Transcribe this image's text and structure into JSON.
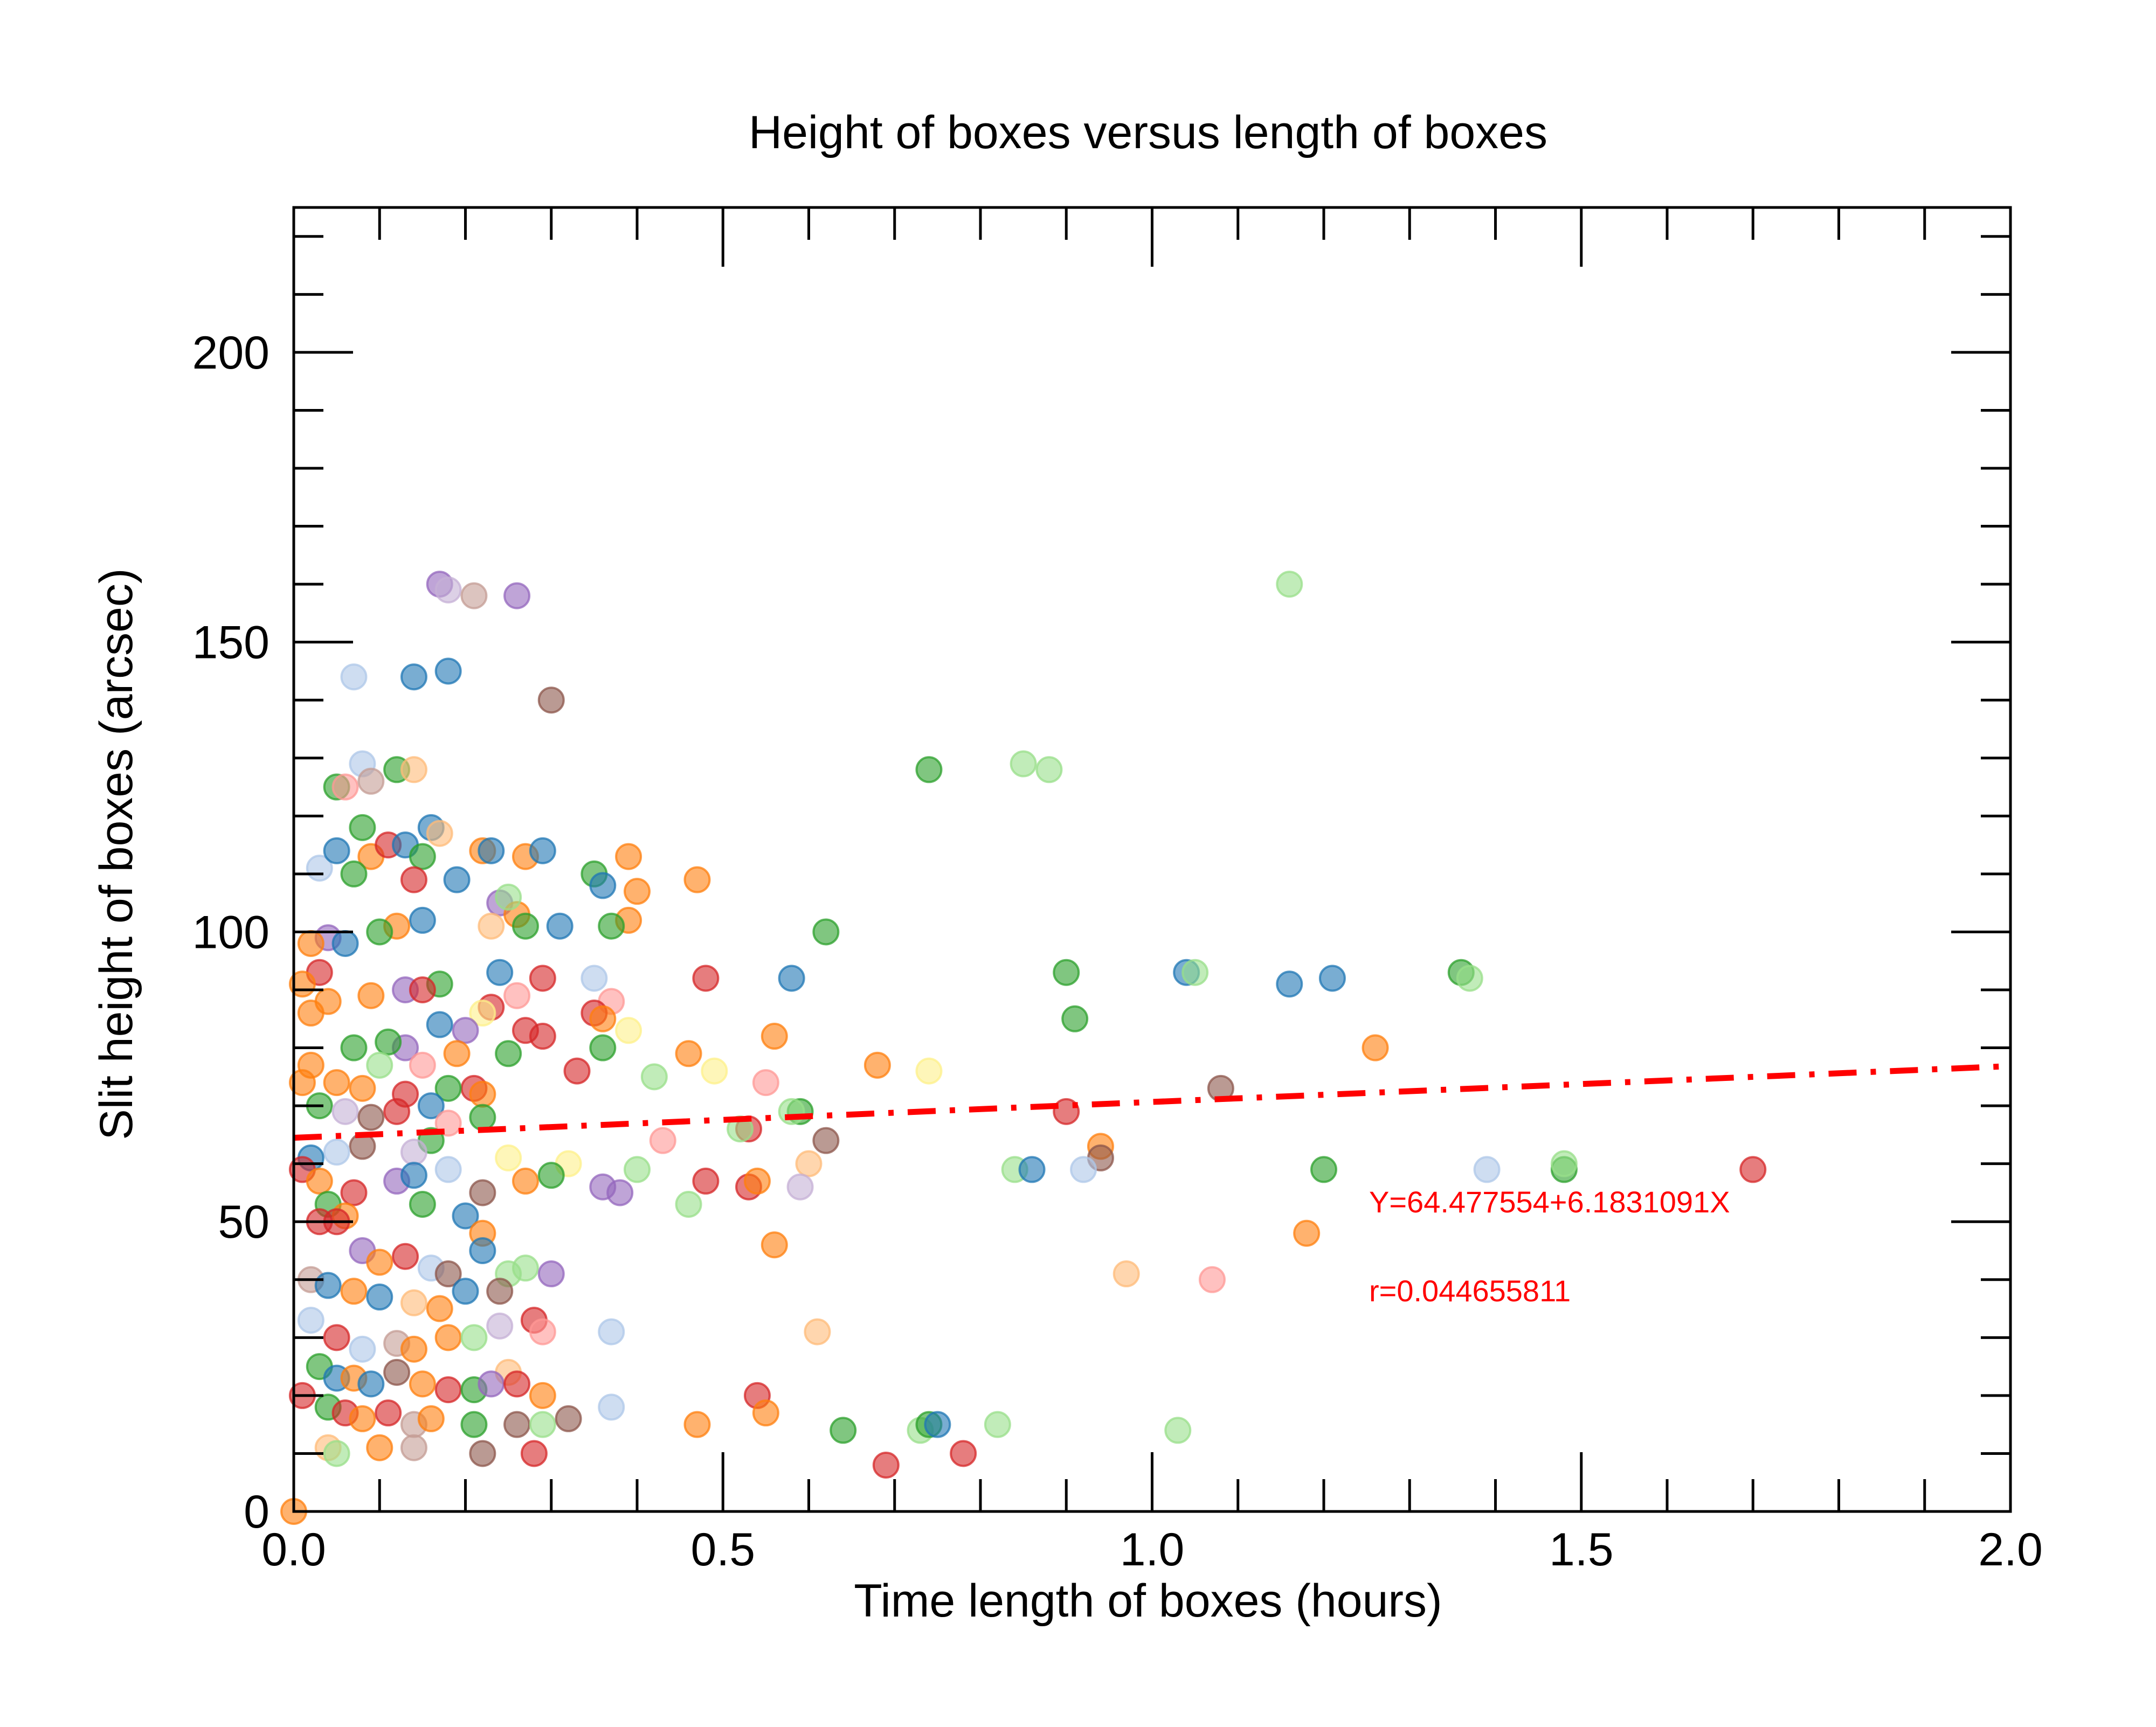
{
  "chart_data": {
    "type": "scatter",
    "title": "Height of boxes versus length of boxes",
    "xlabel": "Time length of boxes (hours)",
    "ylabel": "Slit height of boxes (arcsec)",
    "xlim": [
      0.0,
      2.0
    ],
    "ylim": [
      0,
      225
    ],
    "x_ticks": [
      0.0,
      0.5,
      1.0,
      1.5,
      2.0
    ],
    "x_tick_labels": [
      "0.0",
      "0.5",
      "1.0",
      "1.5",
      "2.0"
    ],
    "y_ticks": [
      0,
      50,
      100,
      150,
      200
    ],
    "y_tick_labels": [
      "0",
      "50",
      "100",
      "150",
      "200"
    ],
    "grid": false,
    "legend": "none",
    "colors": [
      "#1f77b4",
      "#ff7f0e",
      "#2ca02c",
      "#d62728",
      "#9467bd",
      "#8c564b",
      "#aec7e8",
      "#ffbb78",
      "#98df8a",
      "#ff9896",
      "#c5b0d5",
      "#c49c94",
      "#fdf08a"
    ],
    "fit_line": {
      "intercept": 64.477554,
      "slope": 6.1831091,
      "color": "#ff0000",
      "style": "dash-dot",
      "x_range": [
        0.0,
        2.0
      ]
    },
    "annotations": [
      {
        "text": "Y=64.477554+6.1831091X",
        "color": "#ff0000"
      },
      {
        "text": "r=0.044655811",
        "color": "#ff0000"
      }
    ],
    "points": [
      [
        1.16,
        160,
        8
      ],
      [
        0.17,
        160,
        4
      ],
      [
        0.18,
        159,
        10
      ],
      [
        0.21,
        158,
        11
      ],
      [
        0.26,
        158,
        4
      ],
      [
        0.07,
        144,
        6
      ],
      [
        0.14,
        144,
        0
      ],
      [
        0.18,
        145,
        0
      ],
      [
        0.3,
        140,
        5
      ],
      [
        0.74,
        128,
        2
      ],
      [
        0.85,
        129,
        8
      ],
      [
        0.88,
        128,
        8
      ],
      [
        0.08,
        129,
        6
      ],
      [
        0.12,
        128,
        2
      ],
      [
        0.14,
        128,
        7
      ],
      [
        0.05,
        125,
        2
      ],
      [
        0.06,
        125,
        9
      ],
      [
        0.09,
        126,
        11
      ],
      [
        0.08,
        118,
        2
      ],
      [
        0.16,
        118,
        0
      ],
      [
        0.17,
        117,
        7
      ],
      [
        0.03,
        111,
        6
      ],
      [
        0.05,
        114,
        0
      ],
      [
        0.09,
        113,
        1
      ],
      [
        0.11,
        115,
        3
      ],
      [
        0.13,
        115,
        0
      ],
      [
        0.15,
        113,
        2
      ],
      [
        0.22,
        114,
        1
      ],
      [
        0.23,
        114,
        0
      ],
      [
        0.27,
        113,
        1
      ],
      [
        0.29,
        114,
        0
      ],
      [
        0.35,
        110,
        2
      ],
      [
        0.39,
        113,
        1
      ],
      [
        0.47,
        109,
        1
      ],
      [
        0.4,
        107,
        1
      ],
      [
        0.36,
        108,
        0
      ],
      [
        0.19,
        109,
        0
      ],
      [
        0.14,
        109,
        3
      ],
      [
        0.07,
        110,
        2
      ],
      [
        0.24,
        105,
        4
      ],
      [
        0.26,
        103,
        1
      ],
      [
        0.27,
        101,
        2
      ],
      [
        0.31,
        101,
        0
      ],
      [
        0.25,
        106,
        8
      ],
      [
        0.23,
        101,
        7
      ],
      [
        0.39,
        102,
        1
      ],
      [
        0.37,
        101,
        2
      ],
      [
        0.62,
        100,
        2
      ],
      [
        0.15,
        102,
        0
      ],
      [
        0.12,
        101,
        1
      ],
      [
        0.1,
        100,
        2
      ],
      [
        0.04,
        99,
        4
      ],
      [
        0.06,
        98,
        0
      ],
      [
        0.02,
        98,
        1
      ],
      [
        0.03,
        93,
        3
      ],
      [
        0.01,
        91,
        1
      ],
      [
        0.29,
        92,
        3
      ],
      [
        0.35,
        92,
        6
      ],
      [
        0.24,
        93,
        0
      ],
      [
        0.48,
        92,
        3
      ],
      [
        0.58,
        92,
        0
      ],
      [
        0.9,
        93,
        2
      ],
      [
        1.04,
        93,
        0
      ],
      [
        1.05,
        93,
        8
      ],
      [
        1.16,
        91,
        0
      ],
      [
        1.21,
        92,
        0
      ],
      [
        1.36,
        93,
        2
      ],
      [
        1.37,
        92,
        8
      ],
      [
        0.17,
        91,
        2
      ],
      [
        0.13,
        90,
        4
      ],
      [
        0.15,
        90,
        3
      ],
      [
        0.09,
        89,
        1
      ],
      [
        0.04,
        88,
        1
      ],
      [
        0.02,
        86,
        1
      ],
      [
        0.26,
        89,
        9
      ],
      [
        0.37,
        88,
        9
      ],
      [
        0.39,
        83,
        12
      ],
      [
        0.35,
        86,
        3
      ],
      [
        0.36,
        85,
        1
      ],
      [
        0.23,
        87,
        3
      ],
      [
        0.22,
        86,
        12
      ],
      [
        0.2,
        83,
        4
      ],
      [
        0.17,
        84,
        0
      ],
      [
        0.13,
        80,
        4
      ],
      [
        0.11,
        81,
        2
      ],
      [
        0.07,
        80,
        2
      ],
      [
        0.29,
        82,
        3
      ],
      [
        0.27,
        83,
        3
      ],
      [
        0.25,
        79,
        2
      ],
      [
        0.36,
        80,
        2
      ],
      [
        0.56,
        82,
        1
      ],
      [
        0.91,
        85,
        2
      ],
      [
        0.46,
        79,
        1
      ],
      [
        0.42,
        75,
        8
      ],
      [
        0.33,
        76,
        3
      ],
      [
        0.19,
        79,
        1
      ],
      [
        0.15,
        77,
        9
      ],
      [
        0.1,
        77,
        8
      ],
      [
        0.68,
        77,
        1
      ],
      [
        0.74,
        76,
        12
      ],
      [
        1.26,
        80,
        1
      ],
      [
        1.08,
        73,
        5
      ],
      [
        0.55,
        74,
        9
      ],
      [
        0.49,
        76,
        12
      ],
      [
        0.21,
        73,
        3
      ],
      [
        0.22,
        72,
        1
      ],
      [
        0.18,
        73,
        2
      ],
      [
        0.13,
        72,
        3
      ],
      [
        0.08,
        73,
        1
      ],
      [
        0.05,
        74,
        1
      ],
      [
        0.02,
        77,
        1
      ],
      [
        0.01,
        74,
        1
      ],
      [
        0.03,
        70,
        2
      ],
      [
        0.06,
        69,
        10
      ],
      [
        0.09,
        68,
        5
      ],
      [
        0.12,
        69,
        3
      ],
      [
        0.16,
        70,
        0
      ],
      [
        0.18,
        67,
        9
      ],
      [
        0.22,
        68,
        2
      ],
      [
        0.53,
        66,
        3
      ],
      [
        0.59,
        69,
        2
      ],
      [
        0.58,
        69,
        8
      ],
      [
        0.9,
        69,
        3
      ],
      [
        0.94,
        63,
        1
      ],
      [
        0.94,
        61,
        5
      ],
      [
        0.62,
        64,
        5
      ],
      [
        0.6,
        60,
        7
      ],
      [
        0.52,
        66,
        8
      ],
      [
        0.43,
        64,
        9
      ],
      [
        0.4,
        59,
        8
      ],
      [
        0.32,
        60,
        12
      ],
      [
        0.25,
        61,
        12
      ],
      [
        0.16,
        64,
        2
      ],
      [
        0.14,
        62,
        10
      ],
      [
        0.08,
        63,
        5
      ],
      [
        0.05,
        62,
        6
      ],
      [
        0.02,
        61,
        0
      ],
      [
        0.01,
        59,
        3
      ],
      [
        0.03,
        57,
        1
      ],
      [
        0.07,
        55,
        3
      ],
      [
        0.12,
        57,
        4
      ],
      [
        0.14,
        58,
        0
      ],
      [
        0.18,
        59,
        6
      ],
      [
        0.22,
        55,
        5
      ],
      [
        0.27,
        57,
        1
      ],
      [
        0.3,
        58,
        2
      ],
      [
        0.36,
        56,
        4
      ],
      [
        0.38,
        55,
        4
      ],
      [
        0.48,
        57,
        3
      ],
      [
        0.53,
        56,
        3
      ],
      [
        0.54,
        57,
        1
      ],
      [
        0.59,
        56,
        10
      ],
      [
        0.46,
        53,
        8
      ],
      [
        0.84,
        59,
        8
      ],
      [
        0.86,
        59,
        0
      ],
      [
        0.92,
        59,
        6
      ],
      [
        1.2,
        59,
        2
      ],
      [
        1.39,
        59,
        6
      ],
      [
        1.48,
        59,
        2
      ],
      [
        1.48,
        60,
        8
      ],
      [
        1.7,
        59,
        3
      ],
      [
        0.04,
        53,
        2
      ],
      [
        0.06,
        51,
        1
      ],
      [
        0.03,
        50,
        3
      ],
      [
        0.05,
        50,
        3
      ],
      [
        0.15,
        53,
        2
      ],
      [
        0.2,
        51,
        0
      ],
      [
        0.22,
        48,
        1
      ],
      [
        0.22,
        45,
        0
      ],
      [
        0.56,
        46,
        1
      ],
      [
        1.18,
        48,
        1
      ],
      [
        0.97,
        41,
        7
      ],
      [
        1.07,
        40,
        9
      ],
      [
        0.08,
        45,
        4
      ],
      [
        0.1,
        43,
        1
      ],
      [
        0.13,
        44,
        3
      ],
      [
        0.16,
        42,
        6
      ],
      [
        0.18,
        41,
        5
      ],
      [
        0.25,
        41,
        8
      ],
      [
        0.27,
        42,
        8
      ],
      [
        0.3,
        41,
        4
      ],
      [
        0.24,
        38,
        5
      ],
      [
        0.02,
        40,
        11
      ],
      [
        0.04,
        39,
        0
      ],
      [
        0.07,
        38,
        1
      ],
      [
        0.1,
        37,
        0
      ],
      [
        0.14,
        36,
        7
      ],
      [
        0.17,
        35,
        1
      ],
      [
        0.2,
        38,
        0
      ],
      [
        0.28,
        33,
        3
      ],
      [
        0.29,
        31,
        9
      ],
      [
        0.24,
        32,
        10
      ],
      [
        0.37,
        31,
        6
      ],
      [
        0.61,
        31,
        7
      ],
      [
        0.02,
        33,
        6
      ],
      [
        0.05,
        30,
        3
      ],
      [
        0.08,
        28,
        6
      ],
      [
        0.12,
        29,
        11
      ],
      [
        0.14,
        28,
        1
      ],
      [
        0.18,
        30,
        1
      ],
      [
        0.21,
        30,
        8
      ],
      [
        0.25,
        24,
        7
      ],
      [
        0.03,
        25,
        2
      ],
      [
        0.05,
        23,
        0
      ],
      [
        0.07,
        23,
        1
      ],
      [
        0.09,
        22,
        0
      ],
      [
        0.12,
        24,
        5
      ],
      [
        0.15,
        22,
        1
      ],
      [
        0.18,
        21,
        3
      ],
      [
        0.21,
        21,
        2
      ],
      [
        0.23,
        22,
        4
      ],
      [
        0.26,
        22,
        3
      ],
      [
        0.29,
        20,
        1
      ],
      [
        0.01,
        20,
        3
      ],
      [
        0.04,
        18,
        2
      ],
      [
        0.06,
        17,
        3
      ],
      [
        0.08,
        16,
        1
      ],
      [
        0.11,
        17,
        3
      ],
      [
        0.14,
        15,
        11
      ],
      [
        0.16,
        16,
        1
      ],
      [
        0.21,
        15,
        2
      ],
      [
        0.26,
        15,
        5
      ],
      [
        0.29,
        15,
        8
      ],
      [
        0.32,
        16,
        5
      ],
      [
        0.37,
        18,
        6
      ],
      [
        0.47,
        15,
        1
      ],
      [
        0.54,
        20,
        3
      ],
      [
        0.55,
        17,
        1
      ],
      [
        0.64,
        14,
        2
      ],
      [
        0.73,
        14,
        8
      ],
      [
        0.74,
        15,
        2
      ],
      [
        0.75,
        15,
        0
      ],
      [
        0.82,
        15,
        8
      ],
      [
        1.03,
        14,
        8
      ],
      [
        0.04,
        11,
        7
      ],
      [
        0.05,
        10,
        8
      ],
      [
        0.1,
        11,
        1
      ],
      [
        0.14,
        11,
        11
      ],
      [
        0.22,
        10,
        5
      ],
      [
        0.28,
        10,
        3
      ],
      [
        0.69,
        8,
        3
      ],
      [
        0.78,
        10,
        3
      ],
      [
        0.0,
        0,
        1
      ]
    ]
  }
}
